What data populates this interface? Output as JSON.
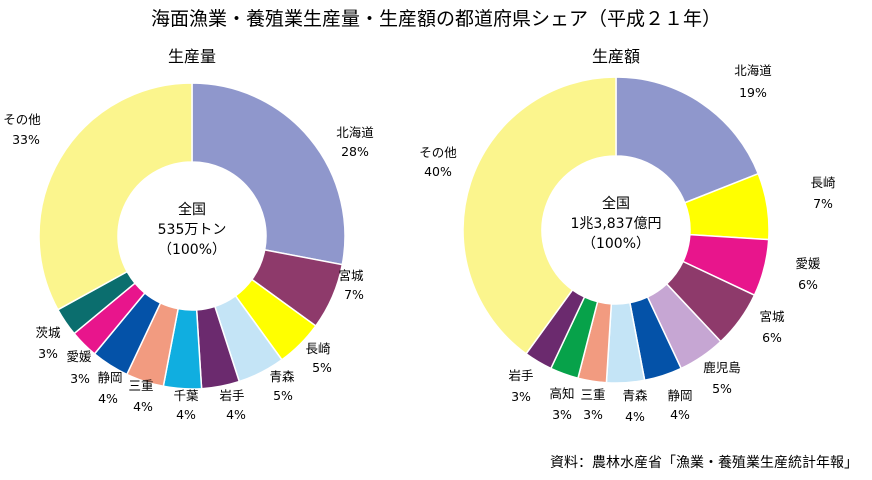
{
  "title": "海面漁業・養殖業生産量・生産額の都道府県シェア（平成２１年）",
  "source": "資料：農林水産省「漁業・養殖業生産統計年報」",
  "chart_data": [
    {
      "type": "pie",
      "title": "生産量",
      "center_label": [
        "全国",
        "535万トン",
        "（100%）"
      ],
      "slices": [
        {
          "label": "北海道",
          "value": 28,
          "value_label": "28%",
          "color": "#8f97cc"
        },
        {
          "label": "宮城",
          "value": 7,
          "value_label": "7%",
          "color": "#8e3a6b"
        },
        {
          "label": "長崎",
          "value": 5,
          "value_label": "5%",
          "color": "#ffff00"
        },
        {
          "label": "青森",
          "value": 5,
          "value_label": "5%",
          "color": "#c4e4f6"
        },
        {
          "label": "岩手",
          "value": 4,
          "value_label": "4%",
          "color": "#6b2a6e"
        },
        {
          "label": "千葉",
          "value": 4,
          "value_label": "4%",
          "color": "#10aee0"
        },
        {
          "label": "三重",
          "value": 4,
          "value_label": "4%",
          "color": "#f29b80"
        },
        {
          "label": "静岡",
          "value": 4,
          "value_label": "4%",
          "color": "#0452a8"
        },
        {
          "label": "愛媛",
          "value": 3,
          "value_label": "3%",
          "color": "#e8158c"
        },
        {
          "label": "茨城",
          "value": 3,
          "value_label": "3%",
          "color": "#0b6e6e"
        },
        {
          "label": "その他",
          "value": 33,
          "value_label": "33%",
          "color": "#fbf58d"
        }
      ]
    },
    {
      "type": "pie",
      "title": "生産額",
      "center_label": [
        "全国",
        "1兆3,837億円",
        "（100%）"
      ],
      "slices": [
        {
          "label": "北海道",
          "value": 19,
          "value_label": "19%",
          "color": "#8f97cc"
        },
        {
          "label": "長崎",
          "value": 7,
          "value_label": "7%",
          "color": "#ffff00"
        },
        {
          "label": "愛媛",
          "value": 6,
          "value_label": "6%",
          "color": "#e8158c"
        },
        {
          "label": "宮城",
          "value": 6,
          "value_label": "6%",
          "color": "#8e3a6b"
        },
        {
          "label": "鹿児島",
          "value": 5,
          "value_label": "5%",
          "color": "#c6a6d3"
        },
        {
          "label": "静岡",
          "value": 4,
          "value_label": "4%",
          "color": "#0452a8"
        },
        {
          "label": "青森",
          "value": 4,
          "value_label": "4%",
          "color": "#c4e4f6"
        },
        {
          "label": "三重",
          "value": 3,
          "value_label": "3%",
          "color": "#f29b80"
        },
        {
          "label": "高知",
          "value": 3,
          "value_label": "3%",
          "color": "#07a24a"
        },
        {
          "label": "岩手",
          "value": 3,
          "value_label": "3%",
          "color": "#6b2a6e"
        },
        {
          "label": "その他",
          "value": 40,
          "value_label": "40%",
          "color": "#fbf58d"
        }
      ]
    }
  ]
}
